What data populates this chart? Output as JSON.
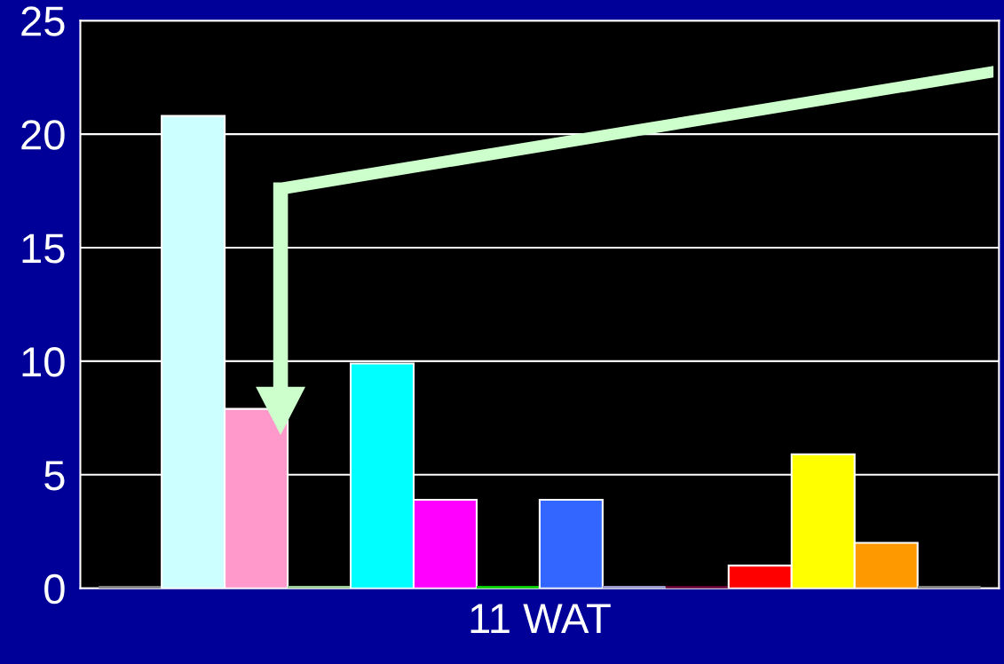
{
  "chart_data": {
    "type": "bar",
    "categories": [
      "11 WAT"
    ],
    "series": [
      {
        "color": "#808080",
        "values": [
          0
        ]
      },
      {
        "color": "#ccffff",
        "values": [
          20.8
        ]
      },
      {
        "color": "#ff99cc",
        "values": [
          7.9
        ]
      },
      {
        "color": "#99cc99",
        "values": [
          0
        ]
      },
      {
        "color": "#00ffff",
        "values": [
          9.9
        ]
      },
      {
        "color": "#ff00ff",
        "values": [
          3.9
        ]
      },
      {
        "color": "#00cc00",
        "values": [
          0
        ]
      },
      {
        "color": "#3366ff",
        "values": [
          3.9
        ]
      },
      {
        "color": "#9999cc",
        "values": [
          0
        ]
      },
      {
        "color": "#660033",
        "values": [
          0
        ]
      },
      {
        "color": "#ff0000",
        "values": [
          1.0
        ]
      },
      {
        "color": "#ffff00",
        "values": [
          5.9
        ]
      },
      {
        "color": "#ff9900",
        "values": [
          2.0
        ]
      },
      {
        "color": "#808080",
        "values": [
          0
        ]
      }
    ],
    "ylim": [
      0,
      25
    ],
    "yticks": [
      0,
      5,
      10,
      15,
      20,
      25
    ],
    "grid": "y",
    "legend": false
  }
}
